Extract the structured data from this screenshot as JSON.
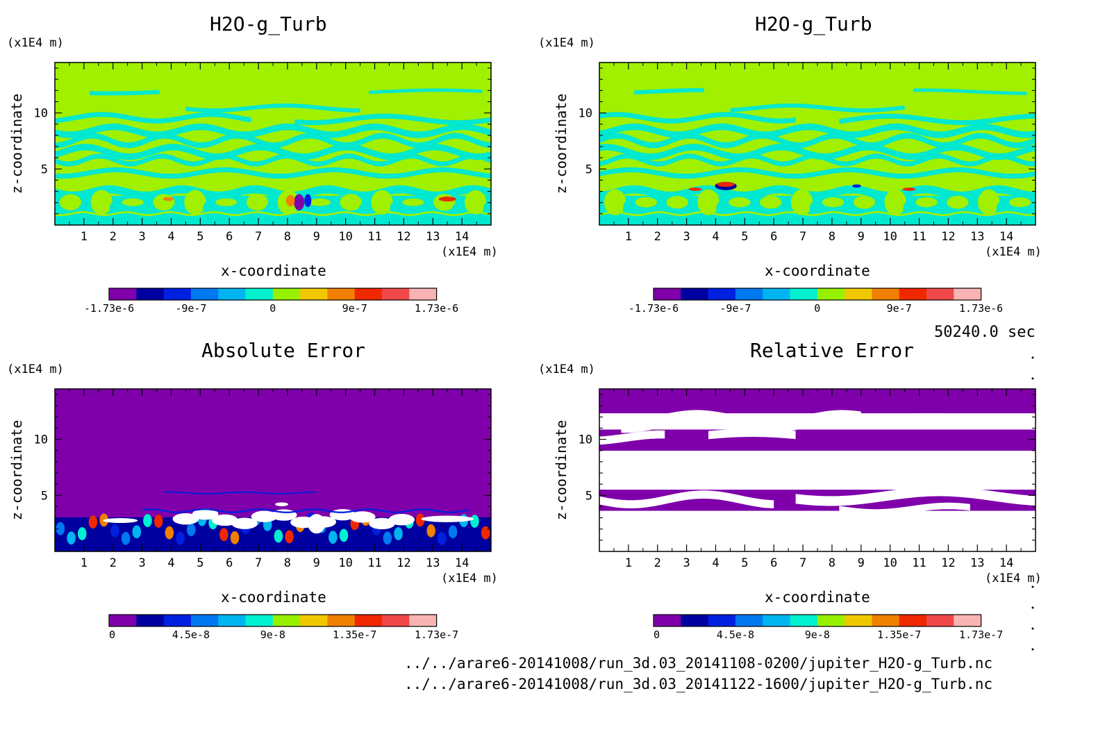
{
  "colors": {
    "scale": [
      "#7f00aa",
      "#0000a0",
      "#0020e0",
      "#0078f0",
      "#00b4f0",
      "#00f0d0",
      "#96f000",
      "#f0c800",
      "#f08000",
      "#f02800",
      "#f04848",
      "#f8b4b4"
    ],
    "field_bg": "#a0f000",
    "field_feature": "#00e8d0",
    "error_bg": "#7f00aa"
  },
  "units": {
    "x": "(x1E4 m)",
    "y": "(x1E4 m)"
  },
  "chart_data": [
    {
      "type": "heatmap",
      "title": "H2O-g_Turb",
      "xlabel": "x-coordinate",
      "ylabel": "z-coordinate",
      "xlim": [
        0,
        15
      ],
      "ylim": [
        0,
        14.5
      ],
      "xticks": [
        1,
        2,
        3,
        4,
        5,
        6,
        7,
        8,
        9,
        10,
        11,
        12,
        13,
        14
      ],
      "yticks": [
        5,
        10
      ],
      "colorbar": {
        "min": -1.73e-06,
        "max": 1.73e-06,
        "labels": [
          "-1.73e-6",
          "-9e-7",
          "0",
          "9e-7",
          "1.73e-6"
        ]
      }
    },
    {
      "type": "heatmap",
      "title": "H2O-g_Turb",
      "xlabel": "x-coordinate",
      "ylabel": "z-coordinate",
      "xlim": [
        0,
        15
      ],
      "ylim": [
        0,
        14.5
      ],
      "xticks": [
        1,
        2,
        3,
        4,
        5,
        6,
        7,
        8,
        9,
        10,
        11,
        12,
        13,
        14
      ],
      "yticks": [
        5,
        10
      ],
      "colorbar": {
        "min": -1.73e-06,
        "max": 1.73e-06,
        "labels": [
          "-1.73e-6",
          "-9e-7",
          "0",
          "9e-7",
          "1.73e-6"
        ]
      }
    },
    {
      "type": "heatmap",
      "title": "Absolute Error",
      "xlabel": "x-coordinate",
      "ylabel": "z-coordinate",
      "xlim": [
        0,
        15
      ],
      "ylim": [
        0,
        14.5
      ],
      "xticks": [
        1,
        2,
        3,
        4,
        5,
        6,
        7,
        8,
        9,
        10,
        11,
        12,
        13,
        14
      ],
      "yticks": [
        5,
        10
      ],
      "colorbar": {
        "min": 0,
        "max": 1.73e-07,
        "labels": [
          "0",
          "4.5e-8",
          "9e-8",
          "1.35e-7",
          "1.73e-7"
        ]
      }
    },
    {
      "type": "heatmap",
      "title": "Relative Error",
      "xlabel": "x-coordinate",
      "ylabel": "z-coordinate",
      "xlim": [
        0,
        15
      ],
      "ylim": [
        0,
        14.5
      ],
      "xticks": [
        1,
        2,
        3,
        4,
        5,
        6,
        7,
        8,
        9,
        10,
        11,
        12,
        13,
        14
      ],
      "yticks": [
        5,
        10
      ],
      "colorbar": {
        "min": 0,
        "max": 1.73e-07,
        "labels": [
          "0",
          "4.5e-8",
          "9e-8",
          "1.35e-7",
          "1.73e-7"
        ]
      }
    }
  ],
  "footer": {
    "time": "50240.0 sec",
    "file1": "../../arare6-20141008/run_3d.03_20141108-0200/jupiter_H2O-g_Turb.nc",
    "file2": "../../arare6-20141008/run_3d.03_20141122-1600/jupiter_H2O-g_Turb.nc"
  }
}
